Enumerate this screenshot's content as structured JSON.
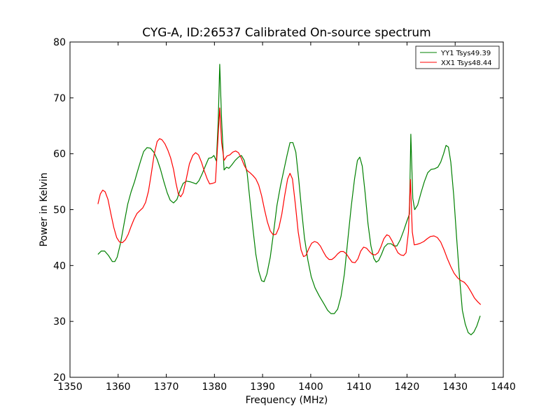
{
  "chart_data": {
    "type": "line",
    "title": "CYG-A, ID:26537 Calibrated On-source spectrum",
    "xlabel": "Frequency (MHz)",
    "ylabel": "Power in Kelvin",
    "xlim": [
      1350,
      1440
    ],
    "ylim": [
      20,
      80
    ],
    "xticks": [
      1350,
      1360,
      1370,
      1380,
      1390,
      1400,
      1410,
      1420,
      1430,
      1440
    ],
    "yticks": [
      20,
      30,
      40,
      50,
      60,
      70,
      80
    ],
    "grid": false,
    "legend_position": "top-right",
    "series": [
      {
        "name": "YY1 Tsys49.39",
        "color": "#008000",
        "points": [
          [
            1355.8,
            42.0
          ],
          [
            1356.5,
            42.6
          ],
          [
            1357.2,
            42.6
          ],
          [
            1358.0,
            41.8
          ],
          [
            1358.8,
            40.7
          ],
          [
            1359.3,
            40.7
          ],
          [
            1359.8,
            41.5
          ],
          [
            1360.5,
            44.0
          ],
          [
            1361.3,
            47.8
          ],
          [
            1362.0,
            51.0
          ],
          [
            1362.7,
            53.2
          ],
          [
            1363.4,
            55.0
          ],
          [
            1364.0,
            56.8
          ],
          [
            1364.7,
            58.8
          ],
          [
            1365.3,
            60.4
          ],
          [
            1366.0,
            61.1
          ],
          [
            1366.7,
            61.0
          ],
          [
            1367.4,
            60.3
          ],
          [
            1368.1,
            59.0
          ],
          [
            1368.8,
            57.2
          ],
          [
            1369.5,
            55.0
          ],
          [
            1370.2,
            53.0
          ],
          [
            1370.8,
            51.7
          ],
          [
            1371.5,
            51.2
          ],
          [
            1372.2,
            51.8
          ],
          [
            1372.8,
            53.3
          ],
          [
            1373.5,
            54.7
          ],
          [
            1374.2,
            55.1
          ],
          [
            1374.9,
            55.0
          ],
          [
            1375.6,
            54.8
          ],
          [
            1376.2,
            54.6
          ],
          [
            1376.8,
            55.2
          ],
          [
            1377.5,
            56.5
          ],
          [
            1378.2,
            58.0
          ],
          [
            1378.8,
            59.2
          ],
          [
            1379.4,
            59.3
          ],
          [
            1379.9,
            59.7
          ],
          [
            1380.4,
            58.7
          ],
          [
            1380.8,
            66.0
          ],
          [
            1381.1,
            76.0
          ],
          [
            1381.5,
            66.0
          ],
          [
            1382.0,
            57.1
          ],
          [
            1382.5,
            57.6
          ],
          [
            1383.0,
            57.4
          ],
          [
            1383.6,
            58.0
          ],
          [
            1384.3,
            58.8
          ],
          [
            1385.0,
            59.4
          ],
          [
            1385.6,
            59.7
          ],
          [
            1386.2,
            58.8
          ],
          [
            1386.8,
            56.5
          ],
          [
            1387.4,
            51.5
          ],
          [
            1388.0,
            46.5
          ],
          [
            1388.6,
            42.0
          ],
          [
            1389.2,
            39.0
          ],
          [
            1389.8,
            37.3
          ],
          [
            1390.3,
            37.1
          ],
          [
            1390.9,
            38.5
          ],
          [
            1391.6,
            41.5
          ],
          [
            1392.3,
            46.0
          ],
          [
            1393.0,
            50.8
          ],
          [
            1393.7,
            54.2
          ],
          [
            1394.4,
            57.0
          ],
          [
            1395.1,
            59.8
          ],
          [
            1395.7,
            62.0
          ],
          [
            1396.3,
            62.0
          ],
          [
            1396.9,
            60.3
          ],
          [
            1397.5,
            55.5
          ],
          [
            1398.1,
            50.0
          ],
          [
            1398.7,
            45.0
          ],
          [
            1399.4,
            41.0
          ],
          [
            1400.1,
            38.0
          ],
          [
            1400.9,
            36.0
          ],
          [
            1401.8,
            34.5
          ],
          [
            1402.7,
            33.2
          ],
          [
            1403.5,
            32.0
          ],
          [
            1404.2,
            31.4
          ],
          [
            1404.9,
            31.4
          ],
          [
            1405.6,
            32.2
          ],
          [
            1406.3,
            34.5
          ],
          [
            1407.0,
            38.5
          ],
          [
            1407.7,
            44.5
          ],
          [
            1408.4,
            50.5
          ],
          [
            1409.1,
            55.5
          ],
          [
            1409.7,
            58.8
          ],
          [
            1410.2,
            59.4
          ],
          [
            1410.7,
            57.8
          ],
          [
            1411.3,
            53.0
          ],
          [
            1411.9,
            47.5
          ],
          [
            1412.5,
            43.5
          ],
          [
            1413.1,
            41.3
          ],
          [
            1413.6,
            40.6
          ],
          [
            1414.1,
            40.9
          ],
          [
            1414.7,
            42.0
          ],
          [
            1415.3,
            43.3
          ],
          [
            1416.0,
            43.9
          ],
          [
            1416.7,
            43.9
          ],
          [
            1417.3,
            43.5
          ],
          [
            1417.9,
            43.5
          ],
          [
            1418.6,
            44.6
          ],
          [
            1419.3,
            46.2
          ],
          [
            1420.0,
            48.0
          ],
          [
            1420.5,
            49.2
          ],
          [
            1420.8,
            63.5
          ],
          [
            1421.2,
            52.0
          ],
          [
            1421.6,
            50.0
          ],
          [
            1422.2,
            50.8
          ],
          [
            1422.9,
            53.0
          ],
          [
            1423.6,
            55.0
          ],
          [
            1424.3,
            56.6
          ],
          [
            1425.0,
            57.2
          ],
          [
            1425.7,
            57.3
          ],
          [
            1426.4,
            57.6
          ],
          [
            1427.0,
            58.5
          ],
          [
            1427.6,
            60.0
          ],
          [
            1428.1,
            61.5
          ],
          [
            1428.6,
            61.2
          ],
          [
            1429.1,
            58.5
          ],
          [
            1429.7,
            52.5
          ],
          [
            1430.3,
            45.0
          ],
          [
            1430.9,
            38.0
          ],
          [
            1431.5,
            32.0
          ],
          [
            1432.1,
            29.5
          ],
          [
            1432.7,
            28.0
          ],
          [
            1433.3,
            27.6
          ],
          [
            1433.9,
            28.1
          ],
          [
            1434.5,
            29.2
          ],
          [
            1435.2,
            31.0
          ]
        ]
      },
      {
        "name": "XX1 Tsys48.44",
        "color": "#ff0000",
        "points": [
          [
            1355.8,
            51.0
          ],
          [
            1356.3,
            52.8
          ],
          [
            1356.8,
            53.5
          ],
          [
            1357.3,
            53.2
          ],
          [
            1357.9,
            51.8
          ],
          [
            1358.5,
            49.2
          ],
          [
            1359.1,
            46.8
          ],
          [
            1359.7,
            45.0
          ],
          [
            1360.3,
            44.2
          ],
          [
            1360.9,
            44.1
          ],
          [
            1361.5,
            44.6
          ],
          [
            1362.1,
            45.6
          ],
          [
            1362.7,
            47.0
          ],
          [
            1363.3,
            48.3
          ],
          [
            1363.9,
            49.3
          ],
          [
            1364.5,
            49.8
          ],
          [
            1365.1,
            50.3
          ],
          [
            1365.7,
            51.3
          ],
          [
            1366.3,
            53.3
          ],
          [
            1366.9,
            56.5
          ],
          [
            1367.5,
            60.0
          ],
          [
            1368.1,
            62.2
          ],
          [
            1368.6,
            62.7
          ],
          [
            1369.1,
            62.5
          ],
          [
            1369.7,
            61.8
          ],
          [
            1370.3,
            60.7
          ],
          [
            1370.9,
            59.3
          ],
          [
            1371.5,
            57.2
          ],
          [
            1372.0,
            54.8
          ],
          [
            1372.5,
            52.8
          ],
          [
            1373.0,
            52.3
          ],
          [
            1373.5,
            53.0
          ],
          [
            1374.1,
            55.3
          ],
          [
            1374.8,
            58.2
          ],
          [
            1375.5,
            59.7
          ],
          [
            1376.1,
            60.2
          ],
          [
            1376.7,
            59.8
          ],
          [
            1377.3,
            58.5
          ],
          [
            1377.9,
            56.9
          ],
          [
            1378.5,
            55.5
          ],
          [
            1379.0,
            54.6
          ],
          [
            1379.6,
            54.7
          ],
          [
            1380.2,
            54.9
          ],
          [
            1380.7,
            62.0
          ],
          [
            1381.1,
            68.2
          ],
          [
            1381.5,
            62.0
          ],
          [
            1382.0,
            58.8
          ],
          [
            1382.6,
            59.6
          ],
          [
            1383.2,
            59.8
          ],
          [
            1383.8,
            60.3
          ],
          [
            1384.4,
            60.5
          ],
          [
            1385.0,
            60.2
          ],
          [
            1385.6,
            59.2
          ],
          [
            1386.2,
            57.9
          ],
          [
            1386.8,
            57.0
          ],
          [
            1387.4,
            56.6
          ],
          [
            1388.0,
            56.1
          ],
          [
            1388.6,
            55.5
          ],
          [
            1389.2,
            54.4
          ],
          [
            1389.8,
            52.5
          ],
          [
            1390.4,
            50.0
          ],
          [
            1391.0,
            47.8
          ],
          [
            1391.6,
            46.2
          ],
          [
            1392.2,
            45.5
          ],
          [
            1392.8,
            45.6
          ],
          [
            1393.4,
            46.8
          ],
          [
            1394.0,
            49.2
          ],
          [
            1394.6,
            52.5
          ],
          [
            1395.2,
            55.5
          ],
          [
            1395.7,
            56.5
          ],
          [
            1396.2,
            55.5
          ],
          [
            1396.8,
            51.0
          ],
          [
            1397.4,
            46.0
          ],
          [
            1398.0,
            42.8
          ],
          [
            1398.5,
            41.6
          ],
          [
            1399.0,
            41.8
          ],
          [
            1399.6,
            43.0
          ],
          [
            1400.2,
            44.0
          ],
          [
            1400.8,
            44.3
          ],
          [
            1401.4,
            44.1
          ],
          [
            1402.0,
            43.5
          ],
          [
            1402.6,
            42.5
          ],
          [
            1403.2,
            41.6
          ],
          [
            1403.8,
            41.1
          ],
          [
            1404.4,
            41.1
          ],
          [
            1405.0,
            41.5
          ],
          [
            1405.6,
            42.1
          ],
          [
            1406.2,
            42.5
          ],
          [
            1406.8,
            42.5
          ],
          [
            1407.4,
            42.1
          ],
          [
            1408.0,
            41.3
          ],
          [
            1408.6,
            40.6
          ],
          [
            1409.2,
            40.5
          ],
          [
            1409.8,
            41.2
          ],
          [
            1410.4,
            42.6
          ],
          [
            1411.0,
            43.3
          ],
          [
            1411.6,
            43.1
          ],
          [
            1412.2,
            42.5
          ],
          [
            1412.8,
            42.0
          ],
          [
            1413.4,
            41.9
          ],
          [
            1414.0,
            42.3
          ],
          [
            1414.6,
            43.4
          ],
          [
            1415.2,
            44.8
          ],
          [
            1415.8,
            45.5
          ],
          [
            1416.3,
            45.3
          ],
          [
            1416.9,
            44.4
          ],
          [
            1417.5,
            43.3
          ],
          [
            1418.1,
            42.3
          ],
          [
            1418.7,
            41.9
          ],
          [
            1419.3,
            41.8
          ],
          [
            1419.8,
            42.3
          ],
          [
            1420.3,
            46.0
          ],
          [
            1420.7,
            55.4
          ],
          [
            1421.1,
            46.0
          ],
          [
            1421.5,
            43.7
          ],
          [
            1422.1,
            43.8
          ],
          [
            1422.8,
            44.0
          ],
          [
            1423.5,
            44.3
          ],
          [
            1424.2,
            44.8
          ],
          [
            1424.9,
            45.2
          ],
          [
            1425.6,
            45.3
          ],
          [
            1426.3,
            45.0
          ],
          [
            1427.0,
            44.2
          ],
          [
            1427.7,
            42.8
          ],
          [
            1428.4,
            41.2
          ],
          [
            1429.1,
            39.8
          ],
          [
            1429.8,
            38.6
          ],
          [
            1430.5,
            37.8
          ],
          [
            1431.2,
            37.3
          ],
          [
            1431.9,
            37.0
          ],
          [
            1432.6,
            36.3
          ],
          [
            1433.3,
            35.3
          ],
          [
            1434.0,
            34.2
          ],
          [
            1434.7,
            33.5
          ],
          [
            1435.3,
            33.0
          ]
        ]
      }
    ]
  }
}
